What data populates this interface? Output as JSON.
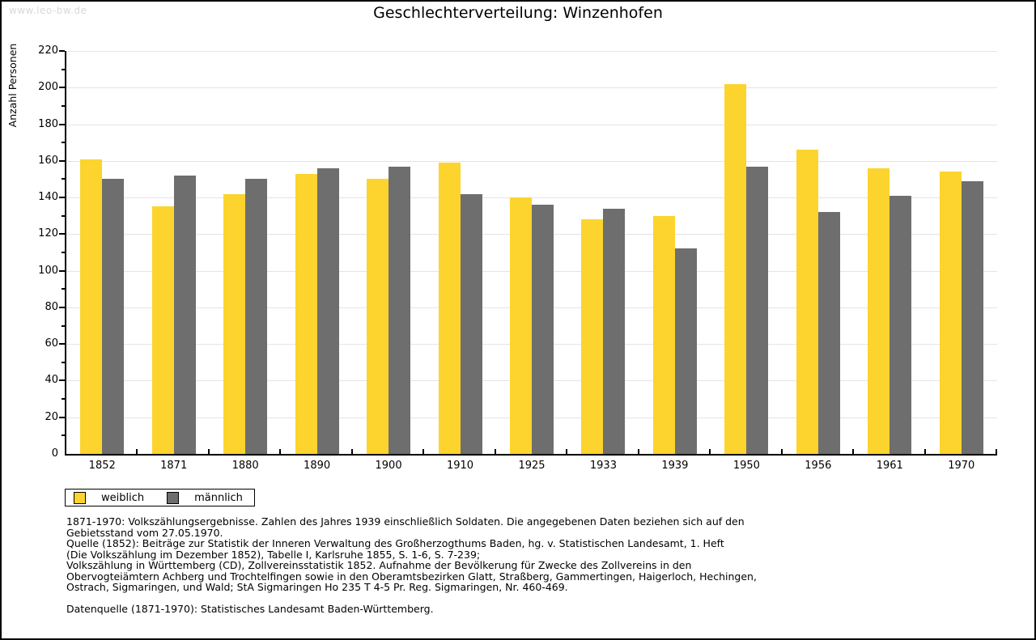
{
  "watermark": "www.leo-bw.de",
  "title": "Geschlechterverteilung: Winzenhofen",
  "chart_data": {
    "type": "bar",
    "title": "Geschlechterverteilung: Winzenhofen",
    "categories": [
      "1852",
      "1871",
      "1880",
      "1890",
      "1900",
      "1910",
      "1925",
      "1933",
      "1939",
      "1950",
      "1956",
      "1961",
      "1970"
    ],
    "series": [
      {
        "name": "weiblich",
        "color": "#fcd42d",
        "values": [
          161,
          135,
          142,
          153,
          150,
          159,
          140,
          128,
          130,
          202,
          166,
          156,
          154
        ]
      },
      {
        "name": "männlich",
        "color": "#6e6e6e",
        "values": [
          150,
          152,
          150,
          156,
          157,
          142,
          136,
          134,
          112,
          157,
          132,
          141,
          149
        ]
      }
    ],
    "xlabel": "",
    "ylabel": "Anzahl Personen",
    "ylim": [
      0,
      220
    ],
    "ytick_step": 20,
    "grid": true,
    "legend_position": "bottom-left"
  },
  "footnotes": {
    "lines": [
      "1871-1970: Volkszählungsergebnisse. Zahlen des Jahres 1939 einschließlich Soldaten. Die angegebenen Daten beziehen sich auf den",
      "Gebietsstand vom 27.05.1970.",
      "Quelle (1852): Beiträge zur Statistik der Inneren Verwaltung des Großherzogthums Baden, hg. v. Statistischen Landesamt, 1. Heft",
      "(Die Volkszählung im Dezember 1852), Tabelle I, Karlsruhe 1855, S. 1-6, S. 7-239;",
      "Volkszählung in Württemberg (CD), Zollvereinsstatistik 1852. Aufnahme der Bevölkerung für Zwecke des Zollvereins in den",
      "Obervogteiämtern Achberg und Trochtelfingen sowie in den Oberamtsbezirken Glatt, Straßberg, Gammertingen, Haigerloch, Hechingen,",
      "Ostrach, Sigmaringen, und Wald; StA Sigmaringen Ho 235 T 4-5 Pr. Reg. Sigmaringen, Nr. 460-469."
    ],
    "datasource": "Datenquelle (1871-1970): Statistisches Landesamt Baden-Württemberg."
  }
}
